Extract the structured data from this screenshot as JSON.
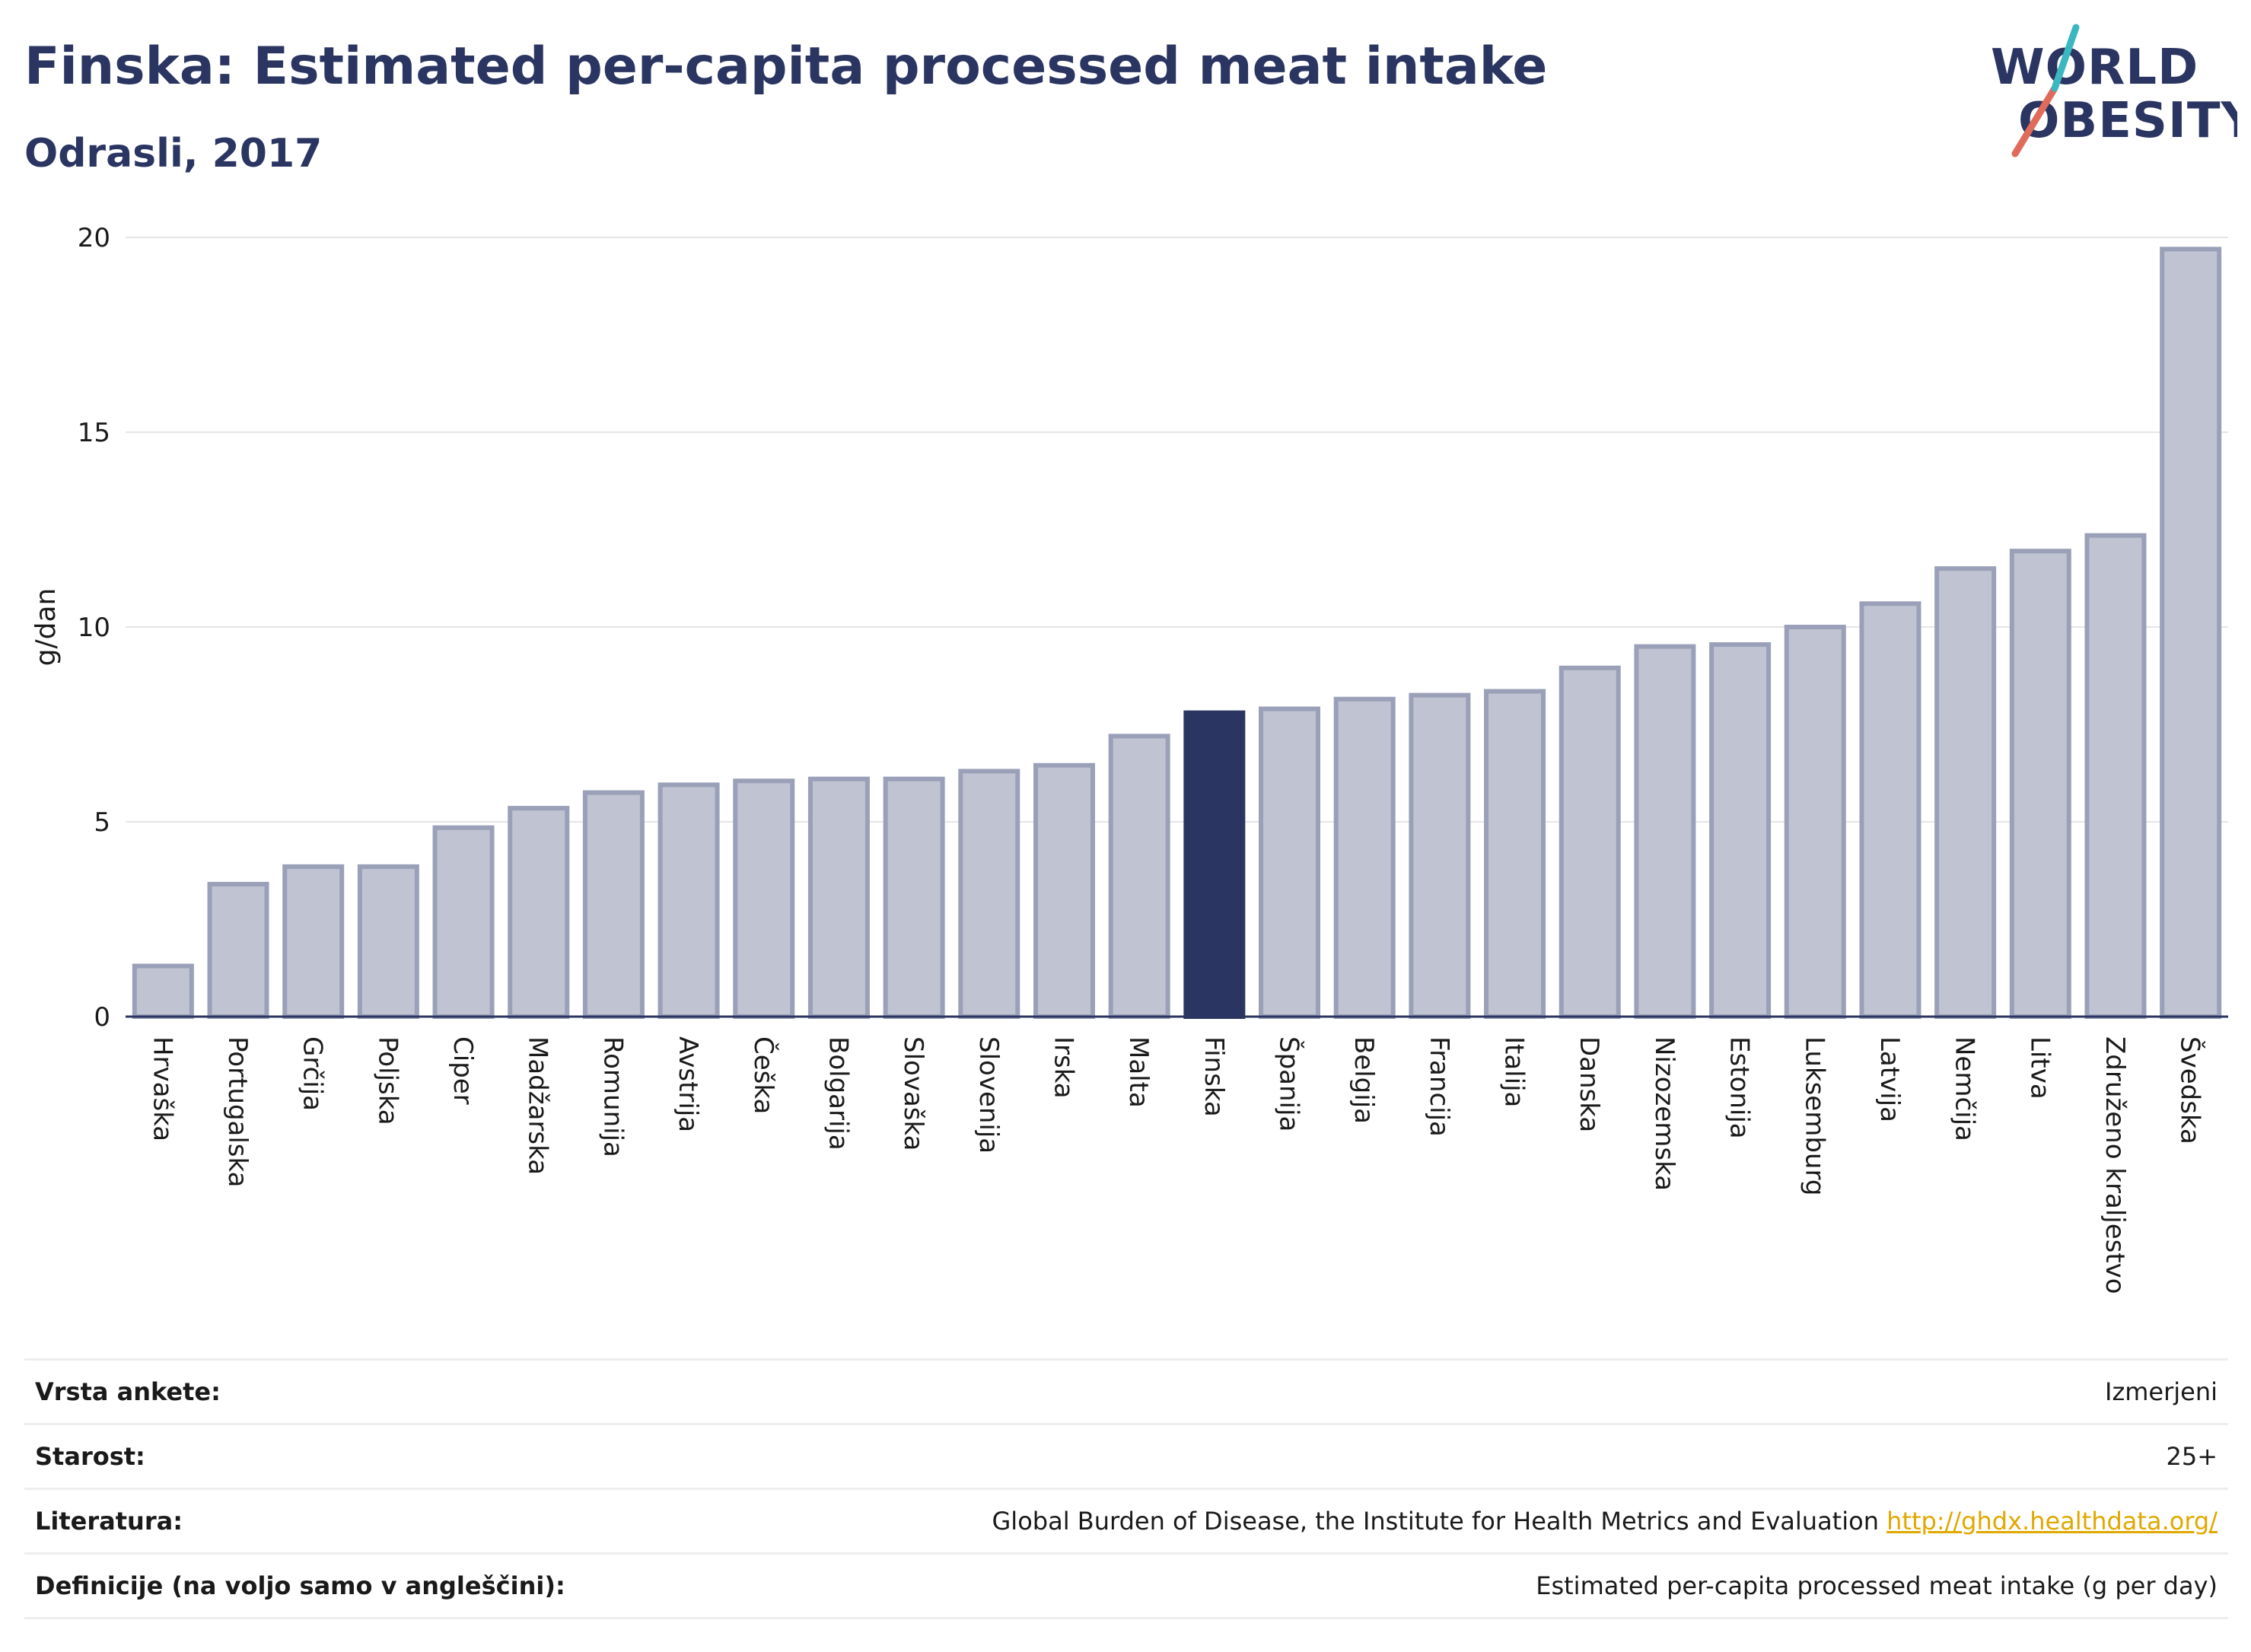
{
  "header": {
    "title": "Finska: Estimated per-capita processed meat intake",
    "subtitle": "Odrasli, 2017"
  },
  "logo": {
    "line1": "WORLD",
    "line2": "OBESITY",
    "colors": {
      "text": "#2b3561",
      "slash_red": "#e06b5a",
      "slash_teal": "#3ab7c0"
    }
  },
  "colors": {
    "bar": "#c0c3d1",
    "bar_border": "#9aa0b8",
    "highlight": "#2b3561",
    "grid": "#e6e6e6"
  },
  "chart_data": {
    "type": "bar",
    "ylabel": "g/dan",
    "ylim": [
      0,
      20
    ],
    "yticks": [
      0,
      5,
      10,
      15,
      20
    ],
    "grid": true,
    "highlight": "Finska",
    "categories": [
      "Hrvaška",
      "Portugalska",
      "Grčija",
      "Poljska",
      "Ciper",
      "Madžarska",
      "Romunija",
      "Avstrija",
      "Češka",
      "Bolgarija",
      "Slovaška",
      "Slovenija",
      "Irska",
      "Malta",
      "Finska",
      "Španija",
      "Belgija",
      "Francija",
      "Italija",
      "Danska",
      "Nizozemska",
      "Estonija",
      "Luksemburg",
      "Latvija",
      "Nemčija",
      "Litva",
      "Združeno kraljestvo",
      "Švedska"
    ],
    "values": [
      1.3,
      3.4,
      3.85,
      3.85,
      4.85,
      5.35,
      5.75,
      5.95,
      6.05,
      6.1,
      6.1,
      6.3,
      6.45,
      7.2,
      7.8,
      7.9,
      8.15,
      8.25,
      8.35,
      8.95,
      9.5,
      9.55,
      10.0,
      10.6,
      11.5,
      11.95,
      12.35,
      19.7
    ]
  },
  "info": [
    {
      "label": "Vrsta ankete:",
      "value": "Izmerjeni"
    },
    {
      "label": "Starost:",
      "value": "25+"
    },
    {
      "label": "Literatura:",
      "value": "Global Burden of Disease, the Institute for Health Metrics and Evaluation",
      "link": "http://ghdx.healthdata.org/"
    },
    {
      "label": "Definicije (na voljo samo v angleščini):",
      "value": "Estimated per-capita processed meat intake (g per day)"
    }
  ]
}
